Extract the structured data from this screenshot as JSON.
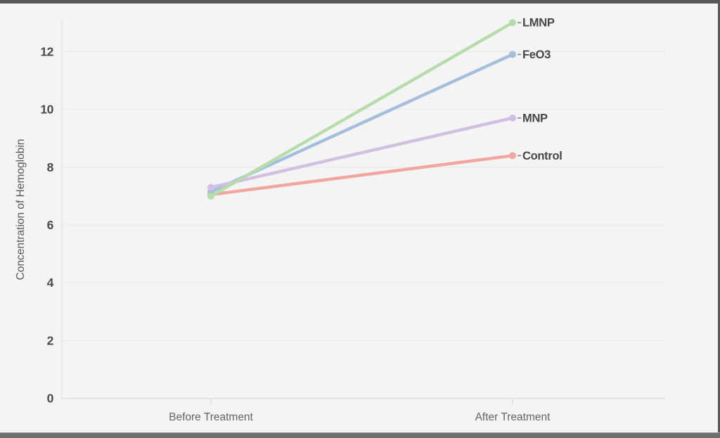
{
  "chart_data": {
    "type": "line",
    "subtype": "slope-chart",
    "title": "",
    "xlabel": "",
    "ylabel": "Concentration of Hemoglobin",
    "categories": [
      "Before Treatment",
      "After Treatment"
    ],
    "series": [
      {
        "name": "LMNP",
        "values": [
          7.0,
          13.0
        ],
        "color": "#b7dcab"
      },
      {
        "name": "FeO3",
        "values": [
          7.15,
          11.9
        ],
        "color": "#a6bedd"
      },
      {
        "name": "MNP",
        "values": [
          7.3,
          9.7
        ],
        "color": "#d2c0e4"
      },
      {
        "name": "Control",
        "values": [
          7.05,
          8.4
        ],
        "color": "#f1a69f"
      }
    ],
    "yticks": [
      0,
      2,
      4,
      6,
      8,
      10,
      12
    ],
    "ylim": [
      0,
      13.2
    ],
    "grid": true,
    "legend_position": "labels-at-line-endpoints",
    "colors": {
      "background": "#f4f4f5",
      "gridline": "#eaeaea",
      "axis_line": "#dcdcdc",
      "tick_text": "#4c4c4c",
      "axis_text": "#636363",
      "frame": "#58585a"
    }
  }
}
